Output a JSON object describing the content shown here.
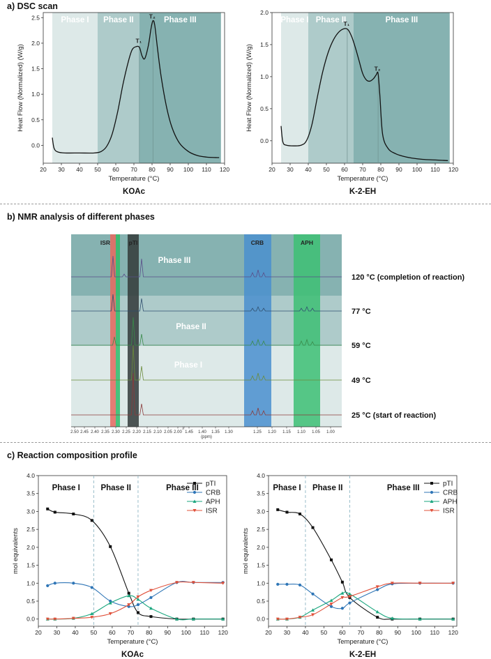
{
  "section_a": {
    "title": "a) DSC scan"
  },
  "section_b": {
    "title": "b)  NMR analysis of different phases"
  },
  "section_c": {
    "title": "c)  Reaction composition profile"
  },
  "colors": {
    "phase1": "#dde9e8",
    "phase2": "#aecbca",
    "phase3": "#86b2b1",
    "isr_band": "#e8685f",
    "aph_band": "#2fbb6a",
    "ptl_band": "#333a3a",
    "crb_band": "#4a8fcf",
    "green_band": "#3dbf74",
    "pTI": "#111111",
    "CRB": "#2e75b6",
    "APH": "#1aa67e",
    "ISR": "#e0503a"
  },
  "chart_data": [
    {
      "type": "line",
      "panel": "a-left",
      "xlabel": "Temperature (°C)",
      "ylabel": "Heat Flow (Normalized) (W/g)",
      "caption": "KOAc",
      "xlim": [
        20,
        120
      ],
      "ylim": [
        -0.35,
        2.6
      ],
      "xticks": [
        "20",
        "30",
        "40",
        "50",
        "60",
        "70",
        "80",
        "90",
        "100",
        "110",
        "120"
      ],
      "yticks": [
        "0.0",
        "0.5",
        "1.0",
        "1.5",
        "2.0",
        "2.5"
      ],
      "phases": [
        {
          "label": "Phase I",
          "from": 20,
          "to": 50
        },
        {
          "label": "Phase II",
          "from": 50,
          "to": 73
        },
        {
          "label": "Phase III",
          "from": 73,
          "to": 120
        }
      ],
      "markers": [
        {
          "label": "T₁",
          "x": 73,
          "y": 1.95
        },
        {
          "label": "T₂",
          "x": 80.5,
          "y": 2.43
        }
      ],
      "x": [
        25,
        26,
        28,
        32,
        40,
        48,
        52,
        55,
        58,
        61,
        64,
        67,
        69,
        71,
        73,
        74.5,
        76,
        78,
        79.5,
        80.5,
        81.5,
        83,
        85,
        88,
        91,
        95,
        100,
        105,
        110,
        115,
        117
      ],
      "y": [
        0.15,
        -0.06,
        -0.13,
        -0.15,
        -0.15,
        -0.15,
        -0.12,
        -0.02,
        0.22,
        0.65,
        1.2,
        1.65,
        1.87,
        1.93,
        1.92,
        1.75,
        1.7,
        1.96,
        2.3,
        2.44,
        2.35,
        1.9,
        1.35,
        0.75,
        0.35,
        0.05,
        -0.12,
        -0.2,
        -0.23,
        -0.24,
        -0.24
      ]
    },
    {
      "type": "line",
      "panel": "a-right",
      "xlabel": "Temperature (°C)",
      "ylabel": "Heat Flow (Normalized) (W/g)",
      "caption": "K-2-EH",
      "xlim": [
        20,
        120
      ],
      "ylim": [
        -0.35,
        2.0
      ],
      "xticks": [
        "20",
        "30",
        "40",
        "50",
        "60",
        "70",
        "80",
        "90",
        "100",
        "110",
        "120"
      ],
      "yticks": [
        "0.0",
        "0.5",
        "1.0",
        "1.5",
        "2.0"
      ],
      "phases": [
        {
          "label": "Phase I",
          "from": 20,
          "to": 40
        },
        {
          "label": "Phase II",
          "from": 40,
          "to": 65
        },
        {
          "label": "Phase III",
          "from": 65,
          "to": 120
        }
      ],
      "markers": [
        {
          "label": "T₁",
          "x": 61.5,
          "y": 1.75
        },
        {
          "label": "T₂",
          "x": 78.5,
          "y": 1.05
        }
      ],
      "x": [
        25,
        26,
        28,
        32,
        36,
        39,
        42,
        45,
        48,
        51,
        54,
        57,
        60,
        62,
        64,
        66,
        68,
        70,
        72,
        74,
        76,
        77.5,
        78.5,
        79.5,
        81,
        84,
        88,
        92,
        97,
        103,
        110,
        117
      ],
      "y": [
        0.23,
        -0.02,
        -0.07,
        -0.08,
        -0.07,
        0.0,
        0.25,
        0.68,
        1.08,
        1.38,
        1.58,
        1.7,
        1.75,
        1.73,
        1.62,
        1.45,
        1.25,
        1.05,
        0.95,
        0.93,
        0.97,
        1.03,
        1.05,
        0.7,
        0.1,
        -0.12,
        -0.2,
        -0.24,
        -0.27,
        -0.29,
        -0.3,
        -0.31
      ]
    },
    {
      "type": "line",
      "panel": "c-left",
      "xlabel": "Temperature (°C)",
      "ylabel": "mol equivalents",
      "caption": "KOAc",
      "xlim": [
        20,
        122
      ],
      "ylim": [
        -0.2,
        4.0
      ],
      "xticks": [
        "20",
        "30",
        "40",
        "50",
        "60",
        "70",
        "80",
        "90",
        "100",
        "110",
        "120"
      ],
      "yticks": [
        "0.0",
        "0.5",
        "1.0",
        "1.5",
        "2.0",
        "2.5",
        "3.0",
        "3.5",
        "4.0"
      ],
      "phase_labels": [
        "Phase I",
        "Phase II",
        "Phase III"
      ],
      "phase_dividers": [
        50,
        74
      ],
      "legend": "top-right",
      "x": [
        25,
        29,
        39,
        49,
        59,
        69,
        74,
        81,
        95,
        104,
        120
      ],
      "series": [
        {
          "name": "pTI",
          "values": [
            3.07,
            2.98,
            2.93,
            2.75,
            2.02,
            0.72,
            0.18,
            0.07,
            0.0,
            0.0,
            0.0
          ]
        },
        {
          "name": "CRB",
          "values": [
            0.93,
            1.0,
            1.0,
            0.88,
            0.5,
            0.35,
            0.4,
            0.6,
            1.02,
            1.02,
            1.02
          ]
        },
        {
          "name": "APH",
          "values": [
            0.0,
            0.0,
            0.02,
            0.15,
            0.45,
            0.65,
            0.55,
            0.3,
            0.0,
            0.0,
            0.0
          ]
        },
        {
          "name": "ISR",
          "values": [
            0.0,
            0.0,
            0.02,
            0.05,
            0.15,
            0.4,
            0.62,
            0.8,
            1.02,
            1.02,
            1.0
          ]
        }
      ]
    },
    {
      "type": "line",
      "panel": "c-right",
      "xlabel": "Temperature (°C)",
      "ylabel": "mol equivalents",
      "caption": "K-2-EH",
      "xlim": [
        20,
        122
      ],
      "ylim": [
        -0.2,
        4.0
      ],
      "xticks": [
        "20",
        "30",
        "40",
        "50",
        "60",
        "70",
        "80",
        "90",
        "100",
        "110",
        "120"
      ],
      "yticks": [
        "0.0",
        "0.5",
        "1.0",
        "1.5",
        "2.0",
        "2.5",
        "3.0",
        "3.5",
        "4.0"
      ],
      "phase_labels": [
        "Phase I",
        "Phase II",
        "Phase III"
      ],
      "phase_dividers": [
        40,
        64
      ],
      "legend": "top-right",
      "x": [
        25,
        30,
        37,
        44,
        54,
        60,
        64,
        79,
        87,
        102,
        120
      ],
      "series": [
        {
          "name": "pTI",
          "values": [
            3.05,
            2.98,
            2.93,
            2.55,
            1.65,
            1.03,
            0.6,
            0.05,
            0.0,
            0.0,
            0.0
          ]
        },
        {
          "name": "CRB",
          "values": [
            0.97,
            0.97,
            0.95,
            0.7,
            0.35,
            0.3,
            0.45,
            0.82,
            0.98,
            1.0,
            1.0
          ]
        },
        {
          "name": "APH",
          "values": [
            0.0,
            0.0,
            0.05,
            0.25,
            0.52,
            0.72,
            0.7,
            0.2,
            0.02,
            0.0,
            0.0
          ]
        },
        {
          "name": "ISR",
          "values": [
            0.0,
            0.0,
            0.05,
            0.12,
            0.42,
            0.6,
            0.63,
            0.9,
            1.0,
            1.0,
            1.0
          ]
        }
      ]
    }
  ],
  "nmr": {
    "band_labels": [
      "ISR",
      "pTI",
      "CRB",
      "APH"
    ],
    "phase_labels": [
      "Phase III",
      "Phase II",
      "Phase I"
    ],
    "temperatures": [
      "120 °C (completion of reaction)",
      "77 °C",
      "59 °C",
      "49 °C",
      "25 °C (start of reaction)"
    ],
    "ppm_ticks_left": [
      "2.50",
      "2.45",
      "2.40",
      "2.35",
      "2.30",
      "2.25",
      "2.20",
      "2.15",
      "2.10",
      "2.05",
      "2.00"
    ],
    "ppm_ticks_mid": [
      "1.45",
      "1.40",
      "1.35",
      "1.30"
    ],
    "ppm_ticks_right": [
      "1.25",
      "1.20",
      "1.15",
      "1.10",
      "1.05",
      "1.00"
    ],
    "ppm_label": "(ppm)"
  }
}
